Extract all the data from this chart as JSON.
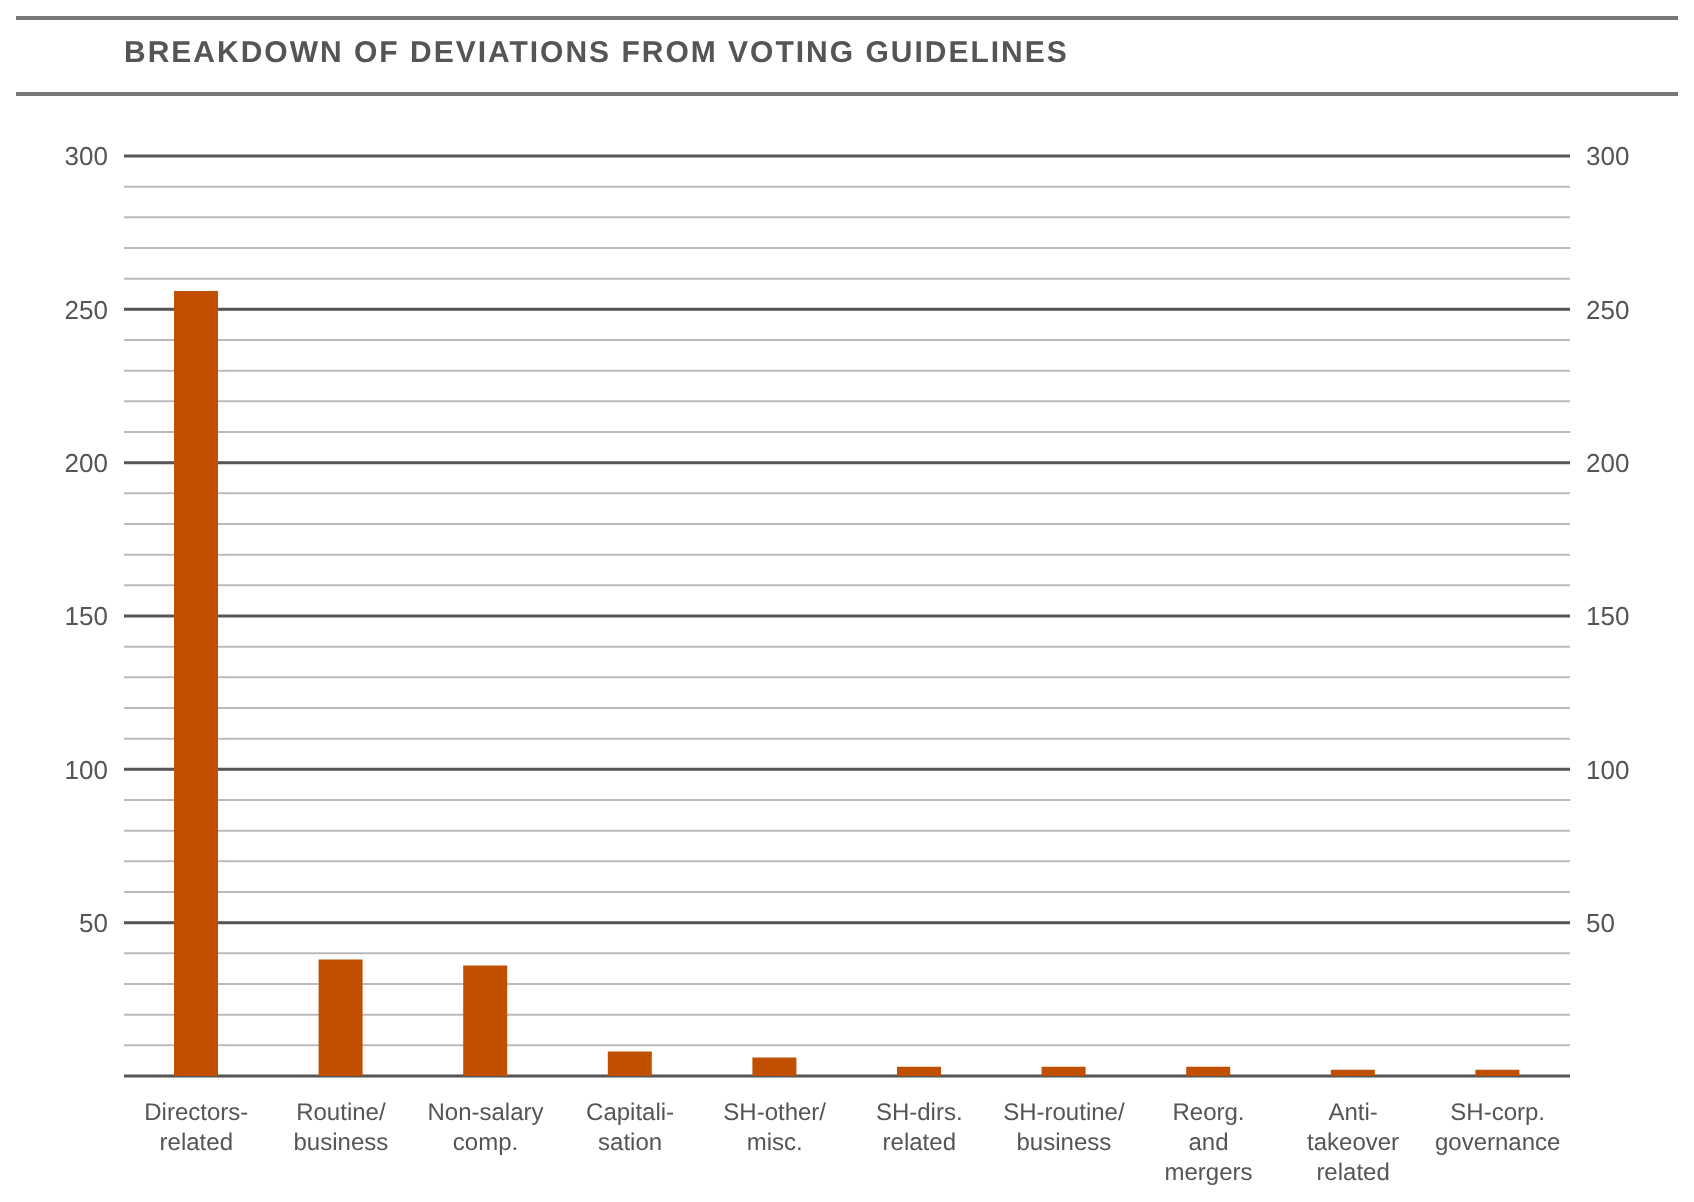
{
  "chart_data": {
    "type": "bar",
    "title": "BREAKDOWN OF DEVIATIONS FROM VOTING GUIDELINES",
    "categories": [
      "Directors-\nrelated",
      "Routine/\nbusiness",
      "Non-salary\ncomp.",
      "Capitali-\nsation",
      "SH-other/\nmisc.",
      "SH-dirs.\nrelated",
      "SH-routine/\nbusiness",
      "Reorg.\nand\nmergers",
      "Anti-\ntakeover\nrelated",
      "SH-corp.\ngovernance"
    ],
    "values": [
      256,
      38,
      36,
      8,
      6,
      3,
      3,
      3,
      2,
      2
    ],
    "color": "#c05000",
    "ylim": [
      0,
      300
    ],
    "yticks": [
      {
        "value": 0,
        "label": null
      },
      {
        "value": 10,
        "label": null
      },
      {
        "value": 20,
        "label": null
      },
      {
        "value": 30,
        "label": null
      },
      {
        "value": 40,
        "label": null
      },
      50,
      {
        "value": 60,
        "label": null
      },
      {
        "value": 70,
        "label": null
      },
      {
        "value": 80,
        "label": null
      },
      {
        "value": 90,
        "label": null
      },
      100,
      {
        "value": 110,
        "label": null
      },
      {
        "value": 120,
        "label": null
      },
      {
        "value": 130,
        "label": null
      },
      {
        "value": 140,
        "label": null
      },
      150,
      {
        "value": 160,
        "label": null
      },
      {
        "value": 170,
        "label": null
      },
      {
        "value": 180,
        "label": null
      },
      {
        "value": 190,
        "label": null
      },
      200,
      {
        "value": 210,
        "label": null
      },
      {
        "value": 220,
        "label": null
      },
      {
        "value": 230,
        "label": null
      },
      {
        "value": 240,
        "label": null
      },
      250,
      {
        "value": 260,
        "label": null
      },
      {
        "value": 270,
        "label": null
      },
      {
        "value": 280,
        "label": null
      },
      {
        "value": 290,
        "label": null
      },
      300
    ],
    "y2lim": [
      0,
      300
    ],
    "y2ticks": [
      {
        "value": 0,
        "label": null
      },
      50,
      100,
      150,
      200,
      250,
      300
    ],
    "grid": "y"
  }
}
